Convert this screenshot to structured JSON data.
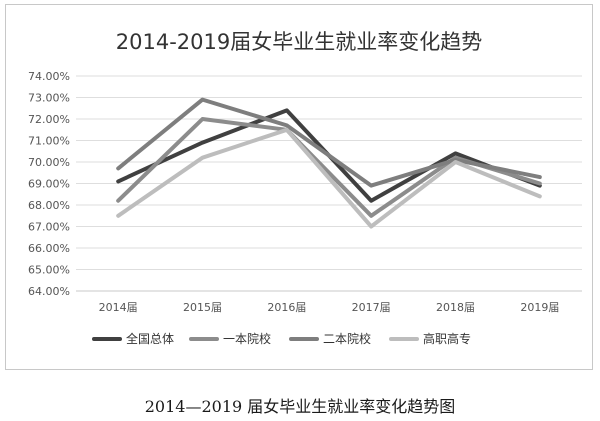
{
  "caption": "2014—2019 届女毕业生就业率变化趋势图",
  "chart_data": {
    "type": "line",
    "title": "2014-2019届女毕业生就业率变化趋势",
    "xlabel": "",
    "ylabel": "",
    "categories": [
      "2014届",
      "2015届",
      "2016届",
      "2017届",
      "2018届",
      "2019届"
    ],
    "ylim": [
      64.0,
      74.0
    ],
    "yticks": [
      "74.00%",
      "73.00%",
      "72.00%",
      "71.00%",
      "70.00%",
      "69.00%",
      "68.00%",
      "67.00%",
      "66.00%",
      "65.00%",
      "64.00%"
    ],
    "ytick_values": [
      74,
      73,
      72,
      71,
      70,
      69,
      68,
      67,
      66,
      65,
      64
    ],
    "grid": true,
    "legend_position": "bottom",
    "series": [
      {
        "name": "全国总体",
        "color": "#404040",
        "values": [
          69.1,
          70.9,
          72.4,
          68.2,
          70.4,
          68.9
        ]
      },
      {
        "name": "一本院校",
        "color": "#8c8c8c",
        "values": [
          68.2,
          72.0,
          71.5,
          67.5,
          70.2,
          69.0
        ]
      },
      {
        "name": "二本院校",
        "color": "#7e7e7e",
        "values": [
          69.7,
          72.9,
          71.7,
          68.9,
          70.1,
          69.3
        ]
      },
      {
        "name": "高职高专",
        "color": "#bdbdbd",
        "values": [
          67.5,
          70.2,
          71.5,
          67.0,
          70.0,
          68.4
        ]
      }
    ]
  }
}
